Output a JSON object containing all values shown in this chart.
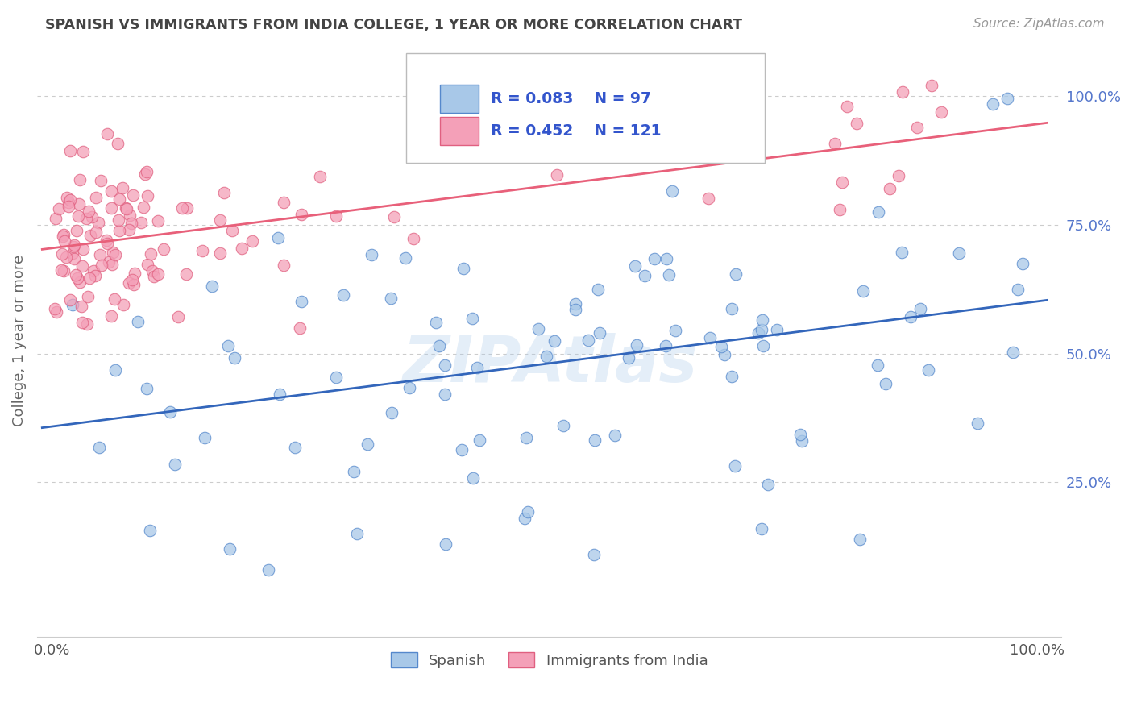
{
  "title": "SPANISH VS IMMIGRANTS FROM INDIA COLLEGE, 1 YEAR OR MORE CORRELATION CHART",
  "source": "Source: ZipAtlas.com",
  "ylabel": "College, 1 year or more",
  "watermark": "ZIPAtlas",
  "legend_spanish_R": "R = 0.083",
  "legend_spanish_N": "N = 97",
  "legend_india_R": "R = 0.452",
  "legend_india_N": "N = 121",
  "legend_label_spanish": "Spanish",
  "legend_label_india": "Immigrants from India",
  "color_spanish_fill": "#A8C8E8",
  "color_spanish_edge": "#5588CC",
  "color_india_fill": "#F4A0B8",
  "color_india_edge": "#E06080",
  "color_spanish_line": "#3366BB",
  "color_india_line": "#E8607A",
  "background_color": "#FFFFFF",
  "grid_color": "#CCCCCC",
  "right_tick_color": "#5577CC",
  "title_color": "#444444",
  "ylabel_color": "#666666"
}
